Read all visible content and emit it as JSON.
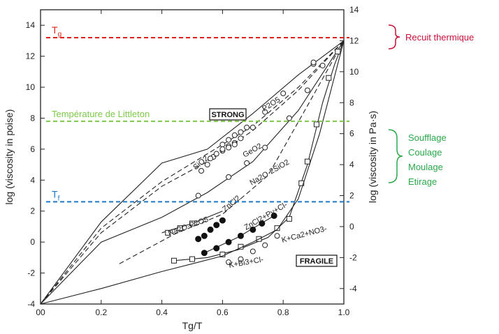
{
  "chart_data": {
    "type": "line",
    "x": {
      "label": "Tg/T",
      "range": [
        0.0,
        1.0
      ],
      "ticks": [
        "00",
        "0.2",
        "0.4",
        "0.6",
        "0.8",
        "1.0"
      ],
      "tick_values": [
        0,
        0.2,
        0.4,
        0.6,
        0.8,
        1.0
      ]
    },
    "y_left": {
      "label": "log (viscosity in poise)",
      "range": [
        -4,
        15
      ],
      "ticks": [
        -4,
        -2,
        0,
        2,
        4,
        6,
        8,
        10,
        12,
        14
      ]
    },
    "y_right": {
      "label": "log (viscosity in Pa·s)",
      "range": [
        -5,
        14
      ],
      "ticks": [
        -4,
        -2,
        0,
        2,
        4,
        6,
        8,
        10,
        12,
        14
      ]
    },
    "series": [
      {
        "name": "SiO2",
        "style": "solid",
        "markers": "circle",
        "points": [
          [
            0,
            -4
          ],
          [
            0.2,
            1.3
          ],
          [
            0.4,
            5.1
          ],
          [
            0.55,
            6.0
          ],
          [
            0.7,
            8.3
          ],
          [
            0.85,
            10.8
          ],
          [
            1.0,
            13.0
          ]
        ],
        "marker_points": [
          [
            0.53,
            4.6
          ],
          [
            0.55,
            5.0
          ],
          [
            0.57,
            5.5
          ],
          [
            0.6,
            5.9
          ],
          [
            0.62,
            6.2
          ],
          [
            0.64,
            6.4
          ],
          [
            0.9,
            11.5
          ]
        ]
      },
      {
        "name": "P2O5",
        "style": "dashed",
        "markers": "circle",
        "points": [
          [
            0,
            -4
          ],
          [
            0.2,
            0.9
          ],
          [
            0.4,
            3.9
          ],
          [
            0.55,
            5.7
          ],
          [
            0.7,
            7.5
          ],
          [
            0.85,
            10.0
          ],
          [
            1.0,
            13.0
          ]
        ],
        "marker_points": [
          [
            0.6,
            6.3
          ],
          [
            0.62,
            6.6
          ],
          [
            0.64,
            6.9
          ],
          [
            0.66,
            7.1
          ],
          [
            0.68,
            7.4
          ]
        ]
      },
      {
        "name": "GeO2",
        "style": "dashed",
        "markers": "circle",
        "points": [
          [
            0,
            -4
          ],
          [
            0.2,
            0.6
          ],
          [
            0.4,
            3.6
          ],
          [
            0.55,
            5.2
          ],
          [
            0.7,
            7.2
          ],
          [
            0.85,
            9.8
          ],
          [
            1.0,
            13.0
          ]
        ],
        "marker_points": [
          [
            0.56,
            5.4
          ],
          [
            0.58,
            5.7
          ],
          [
            0.6,
            6.0
          ],
          [
            0.62,
            6.1
          ],
          [
            0.64,
            6.3
          ],
          [
            0.66,
            6.7
          ],
          [
            0.7,
            7.4
          ],
          [
            0.74,
            8.4
          ],
          [
            0.8,
            9.6
          ],
          [
            0.9,
            11.6
          ]
        ]
      },
      {
        "name": "Na2O·2SiO2",
        "style": "solid",
        "markers": "circle",
        "points": [
          [
            0,
            -4
          ],
          [
            0.2,
            0.0
          ],
          [
            0.4,
            1.6
          ],
          [
            0.55,
            3.2
          ],
          [
            0.7,
            5.2
          ],
          [
            0.85,
            8.5
          ],
          [
            1.0,
            13.0
          ]
        ],
        "marker_points": [
          [
            0.52,
            3.0
          ],
          [
            0.62,
            4.2
          ],
          [
            0.68,
            5.1
          ],
          [
            0.74,
            6.1
          ],
          [
            0.82,
            8.0
          ],
          [
            0.88,
            9.8
          ],
          [
            0.93,
            11.4
          ]
        ]
      },
      {
        "name": "ZnCl2",
        "style": "dashed",
        "markers": "dot",
        "points": [
          [
            0.26,
            -1.4
          ],
          [
            0.44,
            0.5
          ],
          [
            0.6,
            1.8
          ],
          [
            0.75,
            4.3
          ],
          [
            0.88,
            8.8
          ],
          [
            1.0,
            13.0
          ]
        ],
        "marker_points": [
          [
            0.52,
            0.2
          ],
          [
            0.54,
            0.4
          ],
          [
            0.56,
            0.8
          ],
          [
            0.58,
            1.1
          ],
          [
            0.6,
            1.4
          ]
        ]
      },
      {
        "name": "Na2O·P2O5",
        "style": "solid",
        "markers": "square",
        "points": [
          [
            0.4,
            0.6
          ],
          [
            0.5,
            1.2
          ],
          [
            0.6,
            2.0
          ]
        ],
        "marker_points": [
          [
            0.42,
            0.6
          ],
          [
            0.46,
            0.9
          ],
          [
            0.5,
            1.2
          ]
        ]
      },
      {
        "name": "ZnCl2+PyCl-",
        "style": "solid",
        "markers": "dot",
        "points": [
          [
            0.54,
            -0.7
          ],
          [
            0.65,
            0.3
          ],
          [
            0.77,
            1.7
          ]
        ],
        "marker_points": [
          [
            0.54,
            -0.7
          ],
          [
            0.58,
            -0.4
          ],
          [
            0.62,
            0.0
          ],
          [
            0.66,
            0.4
          ],
          [
            0.7,
            0.8
          ],
          [
            0.73,
            1.2
          ],
          [
            0.77,
            1.7
          ]
        ]
      },
      {
        "name": "K+Ca2+NO3-",
        "style": "solid",
        "markers": "square",
        "points": [
          [
            0.44,
            -1.2
          ],
          [
            0.55,
            -1.0
          ],
          [
            0.65,
            -0.5
          ],
          [
            0.75,
            0.3
          ],
          [
            0.82,
            1.6
          ],
          [
            0.88,
            5.0
          ],
          [
            0.93,
            9.0
          ],
          [
            0.97,
            11.5
          ],
          [
            1.0,
            13.0
          ]
        ],
        "marker_points": [
          [
            0.44,
            -1.2
          ],
          [
            0.5,
            -1.1
          ],
          [
            0.6,
            -0.8
          ],
          [
            0.66,
            -0.3
          ],
          [
            0.72,
            0.2
          ],
          [
            0.78,
            0.9
          ],
          [
            0.82,
            1.5
          ],
          [
            0.86,
            3.8
          ],
          [
            0.88,
            5.2
          ],
          [
            0.91,
            7.6
          ],
          [
            0.95,
            10.6
          ],
          [
            0.98,
            12.3
          ]
        ]
      },
      {
        "name": "K+Bi3+Cl-",
        "style": "solid",
        "markers": "circle",
        "points": [
          [
            0,
            -4
          ],
          [
            0.2,
            -3.0
          ],
          [
            0.4,
            -1.9
          ],
          [
            0.5,
            -1.4
          ],
          [
            0.6,
            -0.9
          ],
          [
            0.7,
            0.0
          ],
          [
            0.78,
            0.8
          ],
          [
            0.85,
            2.8
          ],
          [
            0.92,
            7.0
          ],
          [
            1.0,
            13.0
          ]
        ],
        "marker_points": [
          [
            0.62,
            -1.3
          ],
          [
            0.66,
            -1.1
          ],
          [
            0.7,
            -0.6
          ],
          [
            0.74,
            -0.2
          ],
          [
            0.78,
            0.4
          ]
        ]
      }
    ],
    "curve_labels": [
      "P2O5",
      "SiO2",
      "GeO2",
      "Na2O·2SiO2",
      "ZnCl2",
      "Na2O·P2O5",
      "ZnCl2+Py+Cl-",
      "K+Ca2+NO3-",
      "K+Bi3+Cl-"
    ],
    "box_labels": {
      "strong": "STRONG",
      "fragile": "FRAGILE"
    },
    "reference_lines": [
      {
        "label": "Tg",
        "y": 13.2,
        "color": "#e0201b"
      },
      {
        "label": "Température de Littleton",
        "y": 7.8,
        "color": "#7ec84a"
      },
      {
        "label": "Tf",
        "y": 2.6,
        "color": "#1f78c8"
      }
    ],
    "annotations": {
      "recuit": {
        "text": "Recuit thermique",
        "color": "#c8103a"
      },
      "working": {
        "lines": [
          "Soufflage",
          "Coulage",
          "Moulage",
          "Etirage"
        ],
        "color": "#2aa84a"
      }
    }
  }
}
